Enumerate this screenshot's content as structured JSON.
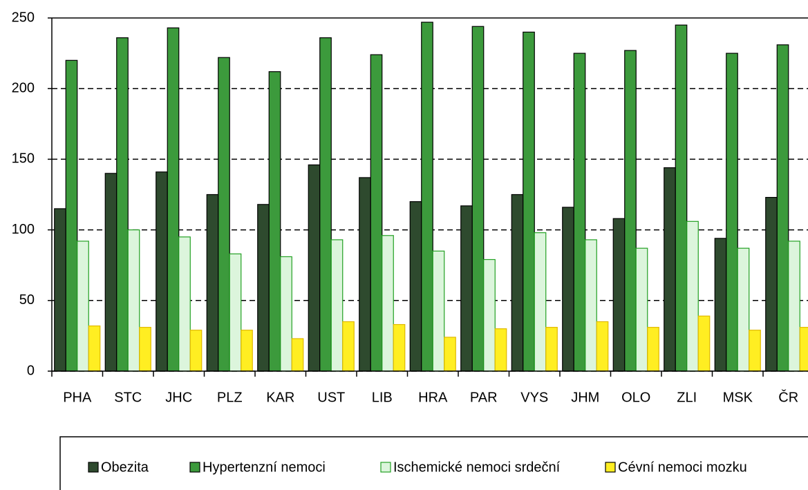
{
  "chart_data": {
    "type": "bar",
    "categories": [
      "PHA",
      "STC",
      "JHC",
      "PLZ",
      "KAR",
      "UST",
      "LIB",
      "HRA",
      "PAR",
      "VYS",
      "JHM",
      "OLO",
      "ZLI",
      "MSK",
      "ČR"
    ],
    "series": [
      {
        "name": "Obezita",
        "color": "#2e4a2e",
        "values": [
          115,
          140,
          141,
          125,
          118,
          146,
          137,
          120,
          117,
          125,
          116,
          108,
          144,
          94,
          123
        ]
      },
      {
        "name": "Hypertenzní nemoci",
        "color": "#3c9a3c",
        "values": [
          220,
          236,
          243,
          222,
          212,
          236,
          224,
          247,
          244,
          240,
          225,
          227,
          245,
          225,
          231
        ]
      },
      {
        "name": "Ischemické nemoci srdeční",
        "color": "#dcf5dc",
        "values": [
          92,
          100,
          95,
          83,
          81,
          93,
          96,
          85,
          79,
          98,
          93,
          87,
          106,
          87,
          92
        ]
      },
      {
        "name": "Cévní nemoci mozku",
        "color": "#ffee22",
        "values": [
          32,
          31,
          29,
          29,
          23,
          35,
          33,
          24,
          30,
          31,
          35,
          31,
          39,
          29,
          31
        ]
      }
    ],
    "ylim": [
      0,
      250
    ],
    "yticks": [
      0,
      50,
      100,
      150,
      200,
      250
    ],
    "grid": true
  }
}
